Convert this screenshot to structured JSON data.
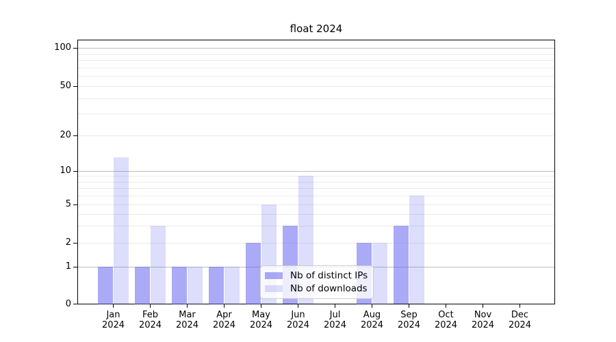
{
  "title": "float 2024",
  "y_axis": {
    "tick_labels": [
      "100",
      "50",
      "20",
      "10",
      "5",
      "2",
      "1",
      "0"
    ],
    "tick_values": [
      100,
      50,
      20,
      10,
      5,
      2,
      1,
      0
    ]
  },
  "x_axis": {
    "months": [
      "Jan",
      "Feb",
      "Mar",
      "Apr",
      "May",
      "Jun",
      "Jul",
      "Aug",
      "Sep",
      "Oct",
      "Nov",
      "Dec"
    ],
    "year": "2024"
  },
  "legend": {
    "items": [
      {
        "label": "Nb of distinct IPs",
        "series": "ips"
      },
      {
        "label": "Nb of downloads",
        "series": "downloads"
      }
    ]
  },
  "colors": {
    "bar_base_rgb": "85,85,238",
    "ips_alpha": 0.5,
    "downloads_alpha": 0.2,
    "grid_major": "#bdbdbd",
    "grid_minor": "#eaeaea",
    "spine": "#000000",
    "legend_border": "#cccccc"
  },
  "chart_data": {
    "type": "bar",
    "title": "float 2024",
    "categories": [
      "Jan 2024",
      "Feb 2024",
      "Mar 2024",
      "Apr 2024",
      "May 2024",
      "Jun 2024",
      "Jul 2024",
      "Aug 2024",
      "Sep 2024",
      "Oct 2024",
      "Nov 2024",
      "Dec 2024"
    ],
    "series": [
      {
        "name": "Nb of distinct IPs",
        "values": [
          1,
          1,
          1,
          1,
          2,
          3,
          0,
          2,
          3,
          0,
          0,
          0
        ]
      },
      {
        "name": "Nb of downloads",
        "values": [
          13,
          3,
          1,
          1,
          5,
          9,
          0,
          2,
          6,
          0,
          0,
          0
        ]
      }
    ],
    "yscale": "symlog",
    "y_ticks": [
      0,
      1,
      2,
      5,
      10,
      20,
      50,
      100
    ],
    "ylim": [
      0,
      130
    ],
    "grid": true,
    "legend_position": "lower center"
  }
}
